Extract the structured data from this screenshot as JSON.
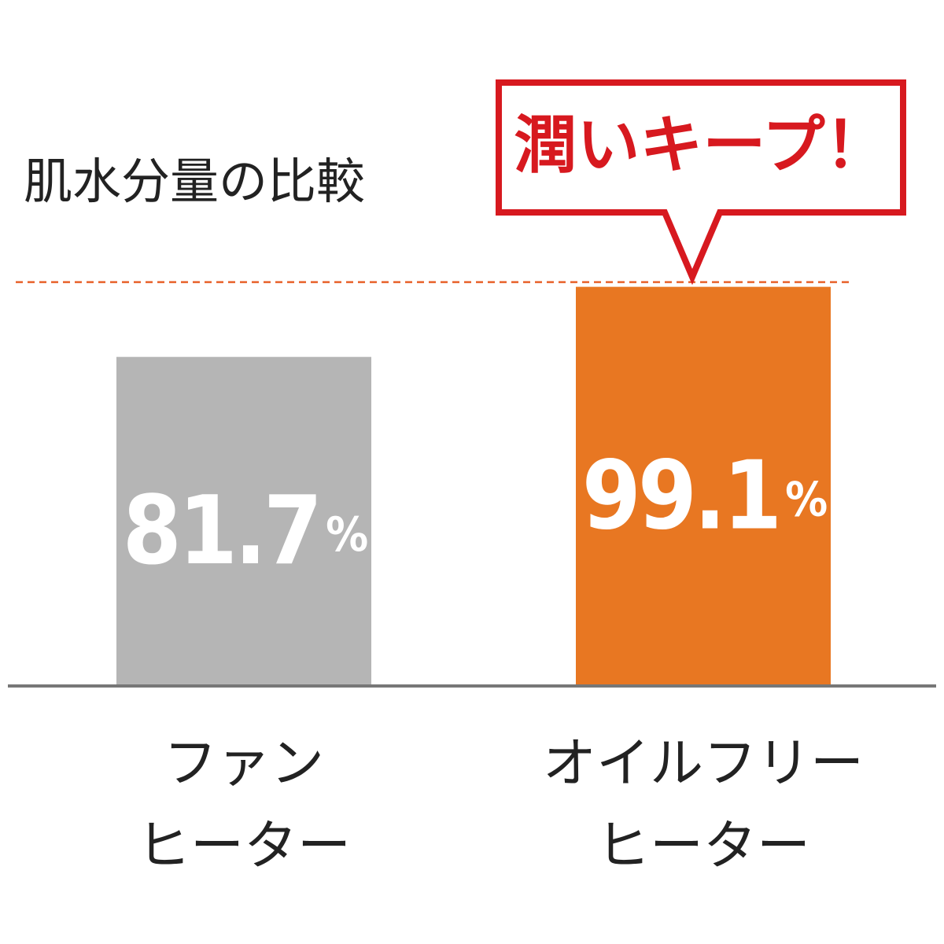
{
  "chart_data": {
    "type": "bar",
    "title": "肌水分量の比較",
    "categories": [
      [
        "ファン",
        "ヒーター"
      ],
      [
        "オイルフリー",
        "ヒーター"
      ]
    ],
    "values": [
      81.7,
      99.1
    ],
    "value_labels": [
      "81.7%",
      "99.1%"
    ],
    "colors": [
      "#b5b5b5",
      "#e87722"
    ],
    "ylim": [
      0,
      100
    ],
    "annotation": "潤いキープ！"
  }
}
